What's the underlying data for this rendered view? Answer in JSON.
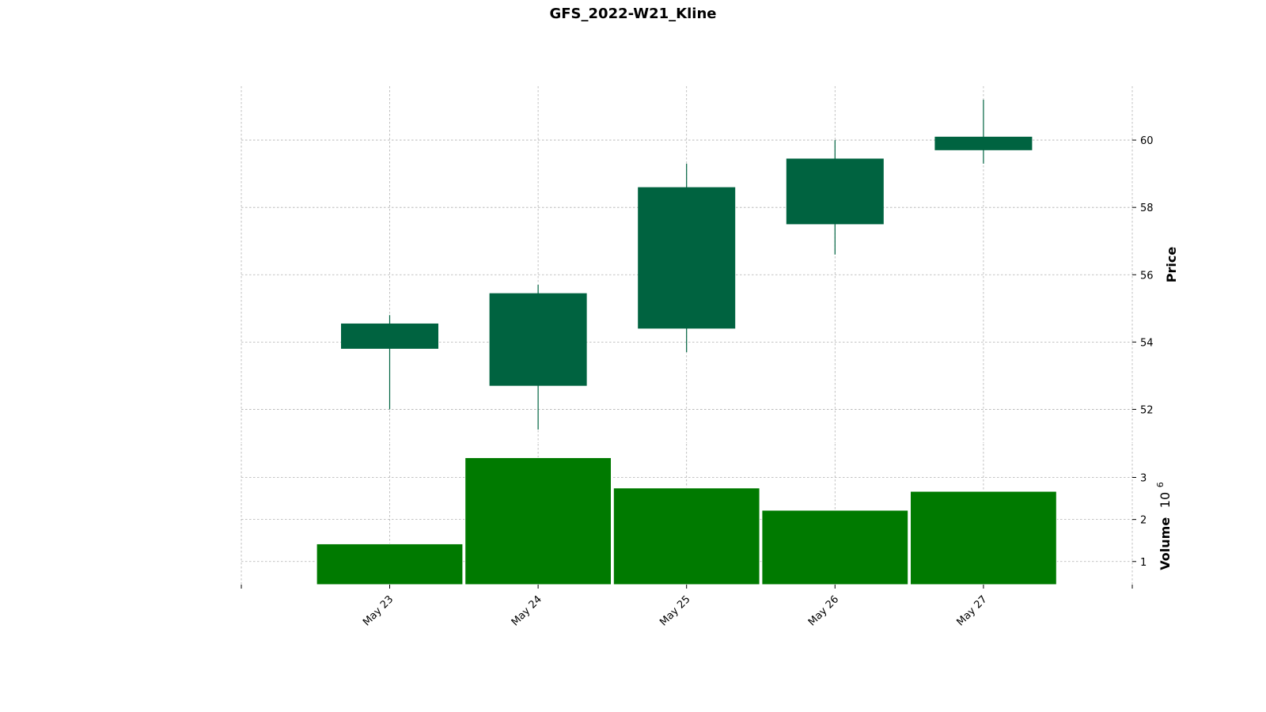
{
  "chart_data": {
    "type": "candlestick",
    "title": "GFS_2022-W21_Kline",
    "categories": [
      "May 23",
      "May 24",
      "May 25",
      "May 26",
      "May 27"
    ],
    "ohlc": [
      {
        "date": "May 23",
        "open": 53.8,
        "high": 54.8,
        "low": 52.0,
        "close": 54.55
      },
      {
        "date": "May 24",
        "open": 52.7,
        "high": 55.7,
        "low": 51.4,
        "close": 55.45
      },
      {
        "date": "May 25",
        "open": 54.4,
        "high": 59.3,
        "low": 53.7,
        "close": 58.6
      },
      {
        "date": "May 26",
        "open": 57.5,
        "high": 60.0,
        "low": 56.6,
        "close": 59.45
      },
      {
        "date": "May 27",
        "open": 59.7,
        "high": 61.2,
        "low": 59.3,
        "close": 60.1
      }
    ],
    "volume": [
      1.42,
      3.47,
      2.75,
      2.22,
      2.67
    ],
    "price_axis": {
      "label": "Price",
      "ylim": [
        51.0,
        61.6
      ],
      "ticks": [
        52,
        54,
        56,
        58,
        60
      ]
    },
    "volume_axis": {
      "label": "Volume",
      "exponent_base": "10",
      "exponent_power": "6",
      "ylim": [
        0.45,
        3.8
      ],
      "ticks": [
        1,
        2,
        3
      ]
    },
    "grid": true,
    "colors": {
      "candle_up": "#006340",
      "volume": "#007a00",
      "grid": "#b0b0b0"
    }
  }
}
